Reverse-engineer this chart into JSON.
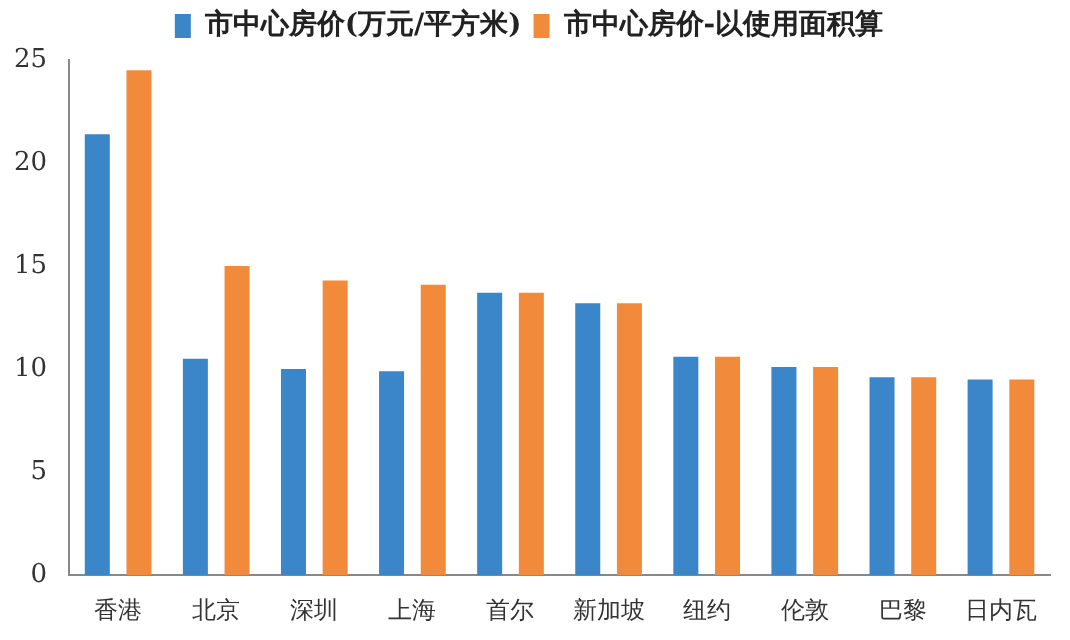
{
  "chart_data": {
    "type": "bar",
    "categories": [
      "香港",
      "北京",
      "深圳",
      "上海",
      "首尔",
      "新加坡",
      "纽约",
      "伦敦",
      "巴黎",
      "日内瓦"
    ],
    "series": [
      {
        "name": "市中心房价(万元/平方米)",
        "color": "#3a86c8",
        "values": [
          21.4,
          10.5,
          10.0,
          9.9,
          13.7,
          13.2,
          10.6,
          10.1,
          9.6,
          9.5
        ]
      },
      {
        "name": "市中心房价-以使用面积算",
        "color": "#f28a3c",
        "values": [
          24.5,
          15.0,
          14.3,
          14.1,
          13.7,
          13.2,
          10.6,
          10.1,
          9.6,
          9.5
        ]
      }
    ],
    "ylim": [
      0,
      25
    ],
    "yticks": [
      0,
      5,
      10,
      15,
      20,
      25
    ],
    "grid": false,
    "legend": "top"
  }
}
